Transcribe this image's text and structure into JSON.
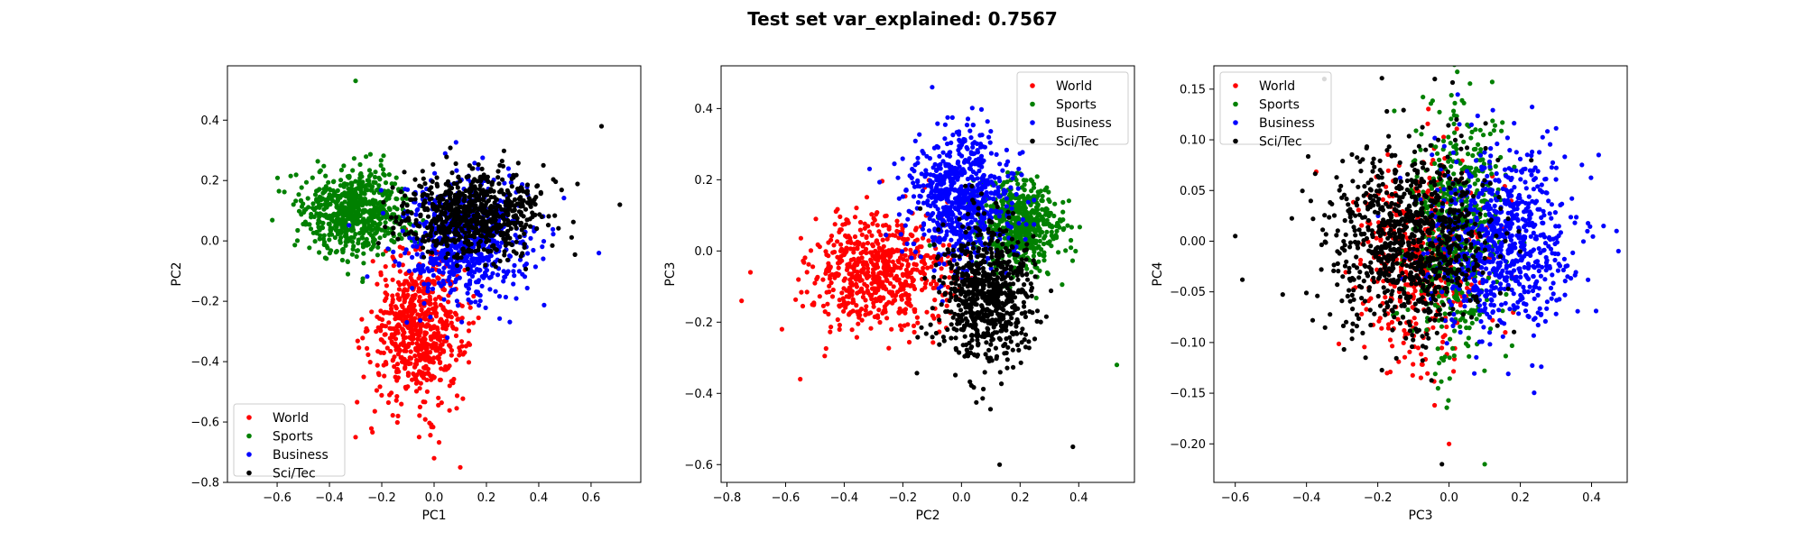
{
  "figure": {
    "title": "Test set var_explained: 0.7567"
  },
  "chart_data": [
    {
      "type": "scatter",
      "xlabel": "PC1",
      "ylabel": "PC2",
      "xlim": [
        -0.79,
        0.79
      ],
      "ylim": [
        -0.8,
        0.58
      ],
      "xticks": [
        "−0.6",
        "−0.4",
        "−0.2",
        "0.0",
        "0.2",
        "0.4",
        "0.6"
      ],
      "xtick_values": [
        -0.6,
        -0.4,
        -0.2,
        0.0,
        0.2,
        0.4,
        0.6
      ],
      "yticks": [
        "−0.8",
        "−0.6",
        "−0.4",
        "−0.2",
        "0.0",
        "0.2",
        "0.4"
      ],
      "ytick_values": [
        -0.8,
        -0.6,
        -0.4,
        -0.2,
        0.0,
        0.2,
        0.4
      ],
      "legend": "lower-left",
      "series": [
        {
          "name": "World",
          "color": "#ff0000",
          "center": [
            -0.06,
            -0.29
          ],
          "spread": [
            0.09,
            0.12
          ],
          "count": 650
        },
        {
          "name": "Sports",
          "color": "#008000",
          "center": [
            -0.3,
            0.1
          ],
          "spread": [
            0.1,
            0.07
          ],
          "count": 650
        },
        {
          "name": "Business",
          "color": "#0000ff",
          "center": [
            0.12,
            0.0
          ],
          "spread": [
            0.12,
            0.1
          ],
          "count": 650
        },
        {
          "name": "Sci/Tec",
          "color": "#000000",
          "center": [
            0.15,
            0.09
          ],
          "spread": [
            0.13,
            0.07
          ],
          "count": 700
        }
      ],
      "outliers": [
        {
          "series": "Sports",
          "x": -0.3,
          "y": 0.53
        },
        {
          "series": "World",
          "x": 0.1,
          "y": -0.75
        },
        {
          "series": "World",
          "x": 0.0,
          "y": -0.72
        },
        {
          "series": "World",
          "x": -0.3,
          "y": -0.65
        },
        {
          "series": "Sci/Tec",
          "x": 0.71,
          "y": 0.12
        },
        {
          "series": "Sci/Tec",
          "x": 0.64,
          "y": 0.38
        },
        {
          "series": "Business",
          "x": 0.63,
          "y": -0.04
        }
      ]
    },
    {
      "type": "scatter",
      "xlabel": "PC2",
      "ylabel": "PC3",
      "xlim": [
        -0.82,
        0.59
      ],
      "ylim": [
        -0.65,
        0.52
      ],
      "xticks": [
        "−0.8",
        "−0.6",
        "−0.4",
        "−0.2",
        "0.0",
        "0.2",
        "0.4"
      ],
      "xtick_values": [
        -0.8,
        -0.6,
        -0.4,
        -0.2,
        0.0,
        0.2,
        0.4
      ],
      "yticks": [
        "−0.6",
        "−0.4",
        "−0.2",
        "0.0",
        "0.2",
        "0.4"
      ],
      "ytick_values": [
        -0.6,
        -0.4,
        -0.2,
        0.0,
        0.2,
        0.4
      ],
      "legend": "upper-right",
      "series": [
        {
          "name": "World",
          "color": "#ff0000",
          "center": [
            -0.27,
            -0.06
          ],
          "spread": [
            0.12,
            0.08
          ],
          "count": 650
        },
        {
          "name": "Sports",
          "color": "#008000",
          "center": [
            0.2,
            0.07
          ],
          "spread": [
            0.07,
            0.06
          ],
          "count": 550
        },
        {
          "name": "Business",
          "color": "#0000ff",
          "center": [
            0.0,
            0.15
          ],
          "spread": [
            0.09,
            0.1
          ],
          "count": 700
        },
        {
          "name": "Sci/Tec",
          "color": "#000000",
          "center": [
            0.08,
            -0.13
          ],
          "spread": [
            0.08,
            0.1
          ],
          "count": 700
        }
      ],
      "outliers": [
        {
          "series": "Sports",
          "x": 0.53,
          "y": -0.32
        },
        {
          "series": "Sci/Tec",
          "x": 0.13,
          "y": -0.6
        },
        {
          "series": "Sci/Tec",
          "x": 0.38,
          "y": -0.55
        },
        {
          "series": "World",
          "x": -0.75,
          "y": -0.14
        },
        {
          "series": "World",
          "x": -0.72,
          "y": -0.06
        },
        {
          "series": "World",
          "x": -0.55,
          "y": -0.36
        },
        {
          "series": "Business",
          "x": -0.1,
          "y": 0.46
        }
      ]
    },
    {
      "type": "scatter",
      "xlabel": "PC3",
      "ylabel": "PC4",
      "xlim": [
        -0.66,
        0.5
      ],
      "ylim": [
        -0.238,
        0.173
      ],
      "xticks": [
        "−0.6",
        "−0.4",
        "−0.2",
        "0.0",
        "0.2",
        "0.4"
      ],
      "xtick_values": [
        -0.6,
        -0.4,
        -0.2,
        0.0,
        0.2,
        0.4
      ],
      "yticks": [
        "−0.20",
        "−0.15",
        "−0.10",
        "−0.05",
        "0.00",
        "0.05",
        "0.10",
        "0.15"
      ],
      "ytick_values": [
        -0.2,
        -0.15,
        -0.1,
        -0.05,
        0.0,
        0.05,
        0.1,
        0.15
      ],
      "legend": "upper-left",
      "series": [
        {
          "name": "World",
          "color": "#ff0000",
          "center": [
            -0.08,
            -0.02
          ],
          "spread": [
            0.09,
            0.05
          ],
          "count": 500
        },
        {
          "name": "Sports",
          "color": "#008000",
          "center": [
            0.02,
            0.01
          ],
          "spread": [
            0.07,
            0.06
          ],
          "count": 550
        },
        {
          "name": "Business",
          "color": "#0000ff",
          "center": [
            0.14,
            0.0
          ],
          "spread": [
            0.1,
            0.045
          ],
          "count": 800
        },
        {
          "name": "Sci/Tec",
          "color": "#000000",
          "center": [
            -0.11,
            0.0
          ],
          "spread": [
            0.11,
            0.045
          ],
          "count": 900
        }
      ],
      "outliers": [
        {
          "series": "Sci/Tec",
          "x": -0.6,
          "y": 0.005
        },
        {
          "series": "Sci/Tec",
          "x": -0.58,
          "y": -0.038
        },
        {
          "series": "Sci/Tec",
          "x": -0.35,
          "y": 0.16
        },
        {
          "series": "Sci/Tec",
          "x": -0.04,
          "y": 0.16
        },
        {
          "series": "Sci/Tec",
          "x": -0.02,
          "y": -0.22
        },
        {
          "series": "Sports",
          "x": 0.1,
          "y": -0.22
        },
        {
          "series": "Business",
          "x": 0.47,
          "y": 0.01
        },
        {
          "series": "Business",
          "x": 0.42,
          "y": 0.085
        },
        {
          "series": "World",
          "x": 0.0,
          "y": -0.2
        }
      ]
    }
  ]
}
